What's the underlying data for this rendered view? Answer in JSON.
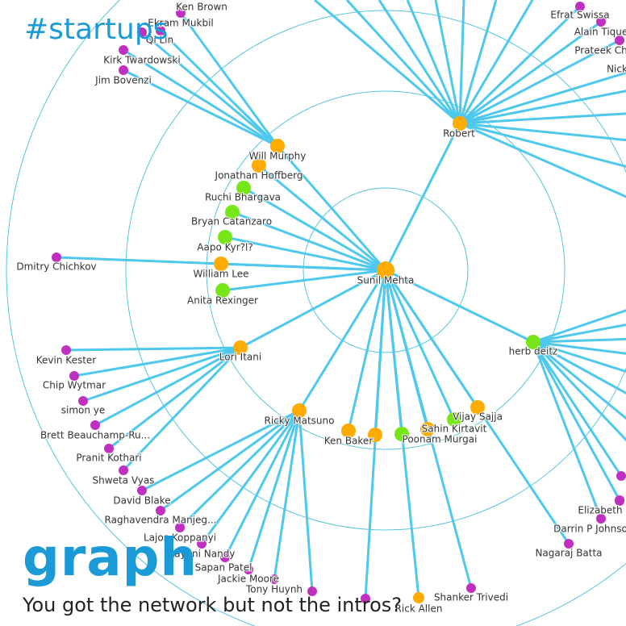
{
  "title": "#startups",
  "logo": "graph",
  "tagline": "You got the network but not the intros?",
  "nodes": [
    {
      "label": "Sunil Mehta"
    },
    {
      "label": "Robert"
    },
    {
      "label": "Will Murphy"
    },
    {
      "label": "Jonathan Hoffberg"
    },
    {
      "label": "Ruchi Bhargava"
    },
    {
      "label": "Bryan Catanzaro"
    },
    {
      "label": "Aapo Kyr?l?"
    },
    {
      "label": "William Lee"
    },
    {
      "label": "Anita Rexinger"
    },
    {
      "label": "Dmitry Chichkov"
    },
    {
      "label": "Lori Itani"
    },
    {
      "label": "herb deitz"
    },
    {
      "label": "Vijay Sajja"
    },
    {
      "label": "Sahin Kirtavit"
    },
    {
      "label": "Poonam Murgai"
    },
    {
      "label": "Ken Baker"
    },
    {
      "label": "Ricky Matsuno"
    },
    {
      "label": "Kevin Kester"
    },
    {
      "label": "Chip Wytmar"
    },
    {
      "label": "simon ye"
    },
    {
      "label": "Brett Beauchamp-Ru..."
    },
    {
      "label": "Pranit Kothari"
    },
    {
      "label": "Shweta Vyas"
    },
    {
      "label": "David Blake"
    },
    {
      "label": "Raghavendra Manjeg..."
    },
    {
      "label": "Lajos Koppanyi"
    },
    {
      "label": "Sayani Nandy"
    },
    {
      "label": "Sapan Patel"
    },
    {
      "label": "Jackie Moore"
    },
    {
      "label": "Tony Huynh"
    },
    {
      "label": "Rick Allen"
    },
    {
      "label": "Shanker Trivedi"
    },
    {
      "label": "Nagaraj Batta"
    },
    {
      "label": "Darrin P Johnso"
    },
    {
      "label": "Elizabeth"
    },
    {
      "label": "Ken Brown"
    },
    {
      "label": "Ekram Mukbil"
    },
    {
      "label": "Qi Lin"
    },
    {
      "label": "Kirk Twardowski"
    },
    {
      "label": "Jim Bovenzi"
    },
    {
      "label": "Efrat Swissa"
    },
    {
      "label": "Alain Tique"
    },
    {
      "label": "Prateek Ch"
    },
    {
      "label": "Nick"
    }
  ]
}
